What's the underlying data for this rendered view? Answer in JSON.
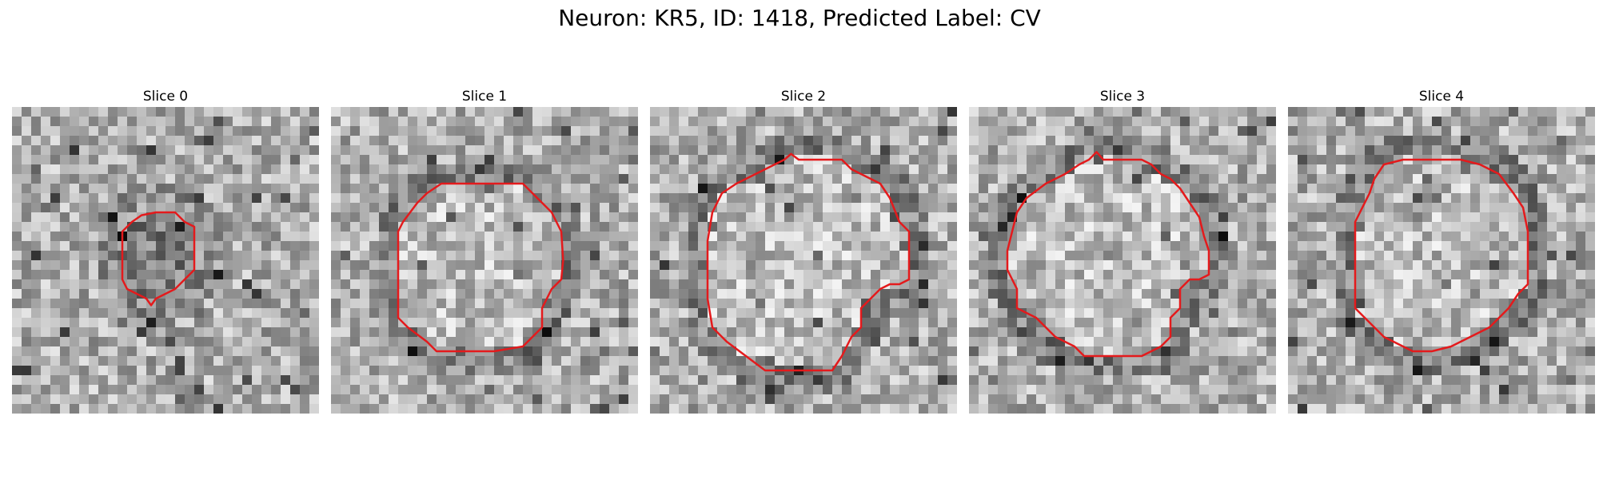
{
  "figure": {
    "title": "Neuron: KR5, ID: 1418, Predicted Label: CV"
  },
  "panels": [
    {
      "title": "Slice 0",
      "seed": 11,
      "contour_color": "#e41a1c",
      "contour_fill": "dark"
    },
    {
      "title": "Slice 1",
      "seed": 23,
      "contour_color": "#e41a1c",
      "contour_fill": "light"
    },
    {
      "title": "Slice 2",
      "seed": 37,
      "contour_color": "#e41a1c",
      "contour_fill": "light"
    },
    {
      "title": "Slice 3",
      "seed": 41,
      "contour_color": "#e41a1c",
      "contour_fill": "light"
    },
    {
      "title": "Slice 4",
      "seed": 53,
      "contour_color": "#e41a1c",
      "contour_fill": "light"
    }
  ]
}
